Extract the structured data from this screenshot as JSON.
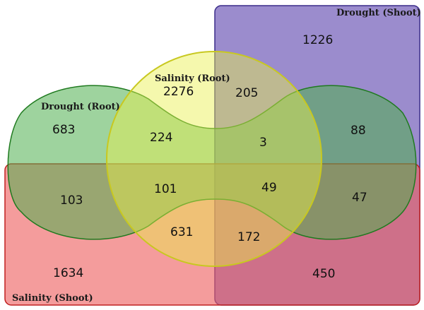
{
  "sets": {
    "drought_root": {
      "label": "Drought (Root)",
      "color": "#7ec45c"
    },
    "drought_shoot": {
      "label": "Drought (Shoot)",
      "color": "#8d7cc6"
    },
    "salinity_root": {
      "label": "Salinity (Root)",
      "color": "#e7ee5a"
    },
    "salinity_shoot": {
      "label": "Salinity (Shoot)",
      "color": "#ee6a6a"
    }
  },
  "regions": {
    "drought_shoot_only": "1226",
    "salinity_root_only": "2276",
    "salinity_root_drought_shoot": "205",
    "drought_root_only": "683",
    "drought_root_salinity_root": "224",
    "center_upper": "3",
    "drought_shoot_right": "88",
    "drought_root_salinity_shoot": "103",
    "center_left": "101",
    "center_right": "49",
    "right_lobe_salinity_shoot": "47",
    "salinity_shoot_salinity_root": "631",
    "salinity_root_salinity_shoot_drought_shoot": "172",
    "salinity_shoot_only": "1634",
    "salinity_shoot_drought_shoot": "450"
  }
}
